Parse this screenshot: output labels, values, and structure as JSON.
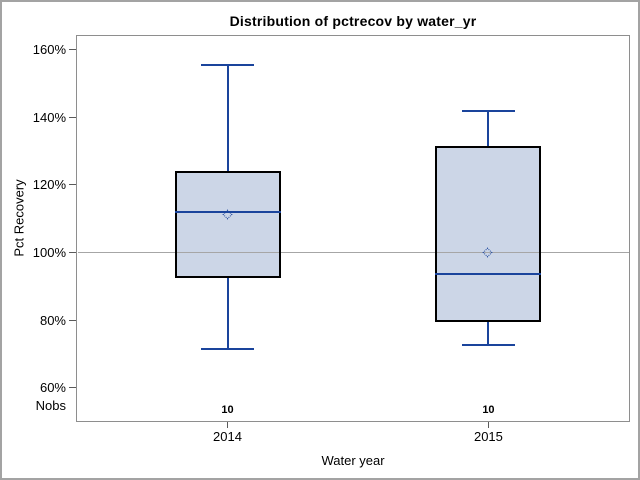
{
  "title": "Distribution of pctrecov by water_yr",
  "y_axis": {
    "label": "Pct Recovery",
    "tick_values": [
      160,
      140,
      120,
      100,
      80,
      60
    ],
    "tick_labels": [
      "160%",
      "140%",
      "120%",
      "100%",
      "80%",
      "60%"
    ]
  },
  "x_axis": {
    "label": "Water year",
    "categories": [
      "2014",
      "2015"
    ]
  },
  "nobs": {
    "label": "Nobs",
    "values": [
      "10",
      "10"
    ]
  },
  "colors": {
    "line_blue": "#1a449c",
    "box_fill": "#ccd6e7",
    "box_border": "#000000",
    "ref_line": "#a6a6a6",
    "plot_border": "#8e8e8e",
    "tick": "#5a5a5a",
    "text": "#000000",
    "frame": "#a3a3a3",
    "background": "#ffffff"
  },
  "chart_data": {
    "type": "box",
    "title": "Distribution of pctrecov by water_yr",
    "xlabel": "Water year",
    "ylabel": "Pct Recovery",
    "categories": [
      "2014",
      "2015"
    ],
    "ytick_values": [
      160,
      140,
      120,
      100,
      80,
      60
    ],
    "ytick_labels": [
      "160%",
      "140%",
      "120%",
      "100%",
      "80%",
      "60%"
    ],
    "ylim": [
      50,
      164.5
    ],
    "refline_y": 100,
    "grid": false,
    "legend": false,
    "series": [
      {
        "category": "2014",
        "nobs": 10,
        "whisker_low": 71.5,
        "q1": 92.5,
        "median": 112,
        "mean": 111,
        "q3": 124,
        "whisker_high": 155.5
      },
      {
        "category": "2015",
        "nobs": 10,
        "whisker_low": 72.5,
        "q1": 79.5,
        "median": 93.5,
        "mean": 100,
        "q3": 131.5,
        "whisker_high": 142
      }
    ]
  }
}
